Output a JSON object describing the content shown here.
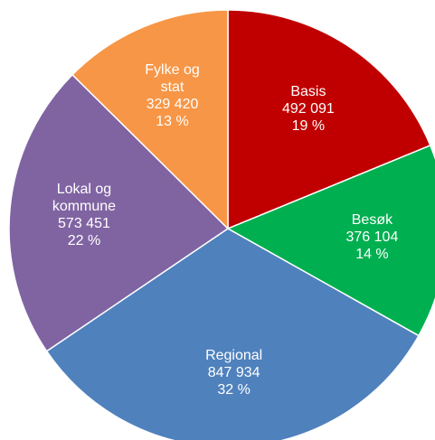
{
  "chart_data": {
    "type": "pie",
    "categories": [
      "Basis",
      "Besøk",
      "Regional",
      "Lokal og kommune",
      "Fylke og stat"
    ],
    "values": [
      492091,
      376104,
      847934,
      573451,
      329420
    ],
    "value_labels": [
      "492 091",
      "376 104",
      "847 934",
      "573 451",
      "329 420"
    ],
    "percents": [
      19,
      14,
      32,
      22,
      13
    ],
    "percent_labels": [
      "19 %",
      "14 %",
      "32 %",
      "22 %",
      "13 %"
    ],
    "colors": [
      "#c00000",
      "#00b050",
      "#4f81bd",
      "#8064a2",
      "#f79646"
    ]
  }
}
